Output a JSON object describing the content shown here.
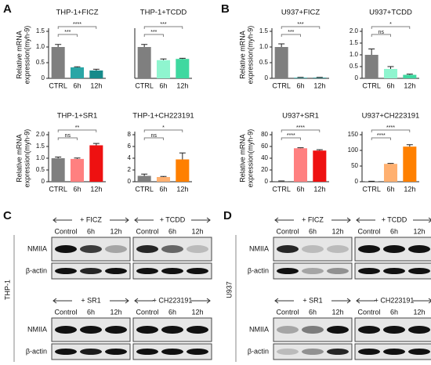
{
  "panel_labels": [
    "A",
    "B",
    "C",
    "D"
  ],
  "chart_data": [
    {
      "type": "bar",
      "title": "THP-1+FICZ",
      "ylabel": [
        "Relative mRNA",
        "expression(myh-9)"
      ],
      "categories": [
        "CTRL",
        "6h",
        "12h"
      ],
      "values": [
        1.0,
        0.35,
        0.25
      ],
      "errors": [
        0.08,
        0.02,
        0.04
      ],
      "colors": [
        "#7f7f7f",
        "#2aa6a6",
        "#168a8a"
      ],
      "ylim": [
        0,
        1.5
      ],
      "yticks": [
        0,
        0.5,
        {
          "value": 1,
          "label": "1.0"
        },
        1.5
      ],
      "significance": [
        "***",
        "****"
      ]
    },
    {
      "type": "bar",
      "title": "THP-1+TCDD",
      "categories": [
        "CTRL",
        "6h",
        "12h"
      ],
      "values": [
        1.0,
        0.58,
        0.62
      ],
      "errors": [
        0.08,
        0.04,
        0.02
      ],
      "colors": [
        "#7f7f7f",
        "#8ff5cf",
        "#3fd8a0"
      ],
      "ylim": [
        0,
        1.5
      ],
      "significance": [
        "***",
        "***"
      ]
    },
    {
      "type": "bar",
      "title": "U937+FICZ",
      "ylabel": [
        "Relative mRNA",
        "expression(myh-9)"
      ],
      "categories": [
        "CTRL",
        "6h",
        "12h"
      ],
      "values": [
        1.0,
        0.02,
        0.02
      ],
      "errors": [
        0.1,
        0.01,
        0.01
      ],
      "colors": [
        "#7f7f7f",
        "#2aa6a6",
        "#168a8a"
      ],
      "ylim": [
        0,
        1.5
      ],
      "yticks": [
        0,
        0.5,
        {
          "value": 1,
          "label": "1.0"
        },
        1.5
      ],
      "significance": [
        "***",
        "***"
      ]
    },
    {
      "type": "bar",
      "title": "U937+TCDD",
      "categories": [
        "CTRL",
        "6h",
        "12h"
      ],
      "values": [
        1.0,
        0.4,
        0.15
      ],
      "errors": [
        0.25,
        0.1,
        0.03
      ],
      "colors": [
        "#7f7f7f",
        "#8ff5cf",
        "#3fd8a0"
      ],
      "ylim": [
        0,
        2.0
      ],
      "yticks": [
        0,
        0.5,
        {
          "value": 1,
          "label": "1.0"
        },
        1.5,
        {
          "value": 2,
          "label": "2.0"
        }
      ],
      "significance": [
        "ns",
        "*"
      ]
    },
    {
      "type": "bar",
      "title": "THP-1+SR1",
      "ylabel": [
        "Relative mRNA",
        "expression(myh-9)"
      ],
      "categories": [
        "CTRL",
        "6h",
        "12h"
      ],
      "values": [
        1.0,
        0.97,
        1.55
      ],
      "errors": [
        0.05,
        0.04,
        0.08
      ],
      "colors": [
        "#7f7f7f",
        "#ff8080",
        "#ee1111"
      ],
      "ylim": [
        0,
        2.0
      ],
      "yticks": [
        0,
        0.5,
        {
          "value": 1,
          "label": "1.0"
        },
        1.5,
        {
          "value": 2,
          "label": "2.0"
        }
      ],
      "significance": [
        "ns",
        "**"
      ]
    },
    {
      "type": "bar",
      "title": "THP-1+CH223191",
      "categories": [
        "CTRL",
        "6h",
        "12h"
      ],
      "values": [
        1.0,
        0.8,
        3.8
      ],
      "errors": [
        0.3,
        0.1,
        1.1
      ],
      "colors": [
        "#7f7f7f",
        "#ffb070",
        "#ff8000"
      ],
      "ylim": [
        0,
        8
      ],
      "yticks": [
        0,
        2,
        4,
        6,
        8
      ],
      "significance": [
        "ns",
        "*"
      ]
    },
    {
      "type": "bar",
      "title": "U937+SR1",
      "ylabel": [
        "Relative mRNA",
        "expression(myh-9)"
      ],
      "categories": [
        "CTRL",
        "6h",
        "12h"
      ],
      "values": [
        1,
        57,
        53
      ],
      "errors": [
        0.3,
        0.8,
        1.5
      ],
      "colors": [
        "#7f7f7f",
        "#ff8080",
        "#ee1111"
      ],
      "ylim": [
        0,
        80
      ],
      "yticks": [
        0,
        20,
        40,
        60,
        80
      ],
      "significance": [
        "****",
        "****"
      ]
    },
    {
      "type": "bar",
      "title": "U937+CH223191",
      "categories": [
        "CTRL",
        "6h",
        "12h"
      ],
      "values": [
        1,
        57,
        112
      ],
      "errors": [
        0.5,
        1.5,
        6
      ],
      "colors": [
        "#7f7f7f",
        "#ffb070",
        "#ff8000"
      ],
      "ylim": [
        0,
        150
      ],
      "yticks": [
        0,
        50,
        100,
        150
      ],
      "significance": [
        "****",
        "****"
      ]
    }
  ],
  "blots": [
    {
      "cell_line": "THP-1",
      "rows": [
        "NMIIA",
        "β-actin"
      ],
      "groups": [
        {
          "treatment": "+ FICZ",
          "lanes": [
            "Control",
            "6h",
            "12h"
          ]
        },
        {
          "treatment": "+ TCDD",
          "lanes": [
            "Control",
            "6h",
            "12h"
          ]
        },
        {
          "treatment": "+ SR1",
          "lanes": [
            "Control",
            "6h",
            "12h"
          ]
        },
        {
          "treatment": "+ CH223191",
          "lanes": [
            "Control",
            "6h",
            "12h"
          ]
        }
      ]
    },
    {
      "cell_line": "U937",
      "rows": [
        "NMIIA",
        "β-actin"
      ],
      "groups": [
        {
          "treatment": "+ FICZ",
          "lanes": [
            "Control",
            "6h",
            "12h"
          ]
        },
        {
          "treatment": "+ TCDD",
          "lanes": [
            "Control",
            "6h",
            "12h"
          ]
        },
        {
          "treatment": "+ SR1",
          "lanes": [
            "Control",
            "6h",
            "12h"
          ]
        },
        {
          "treatment": "+ CH223191",
          "lanes": [
            "Control",
            "6h",
            "12h"
          ]
        }
      ]
    }
  ]
}
